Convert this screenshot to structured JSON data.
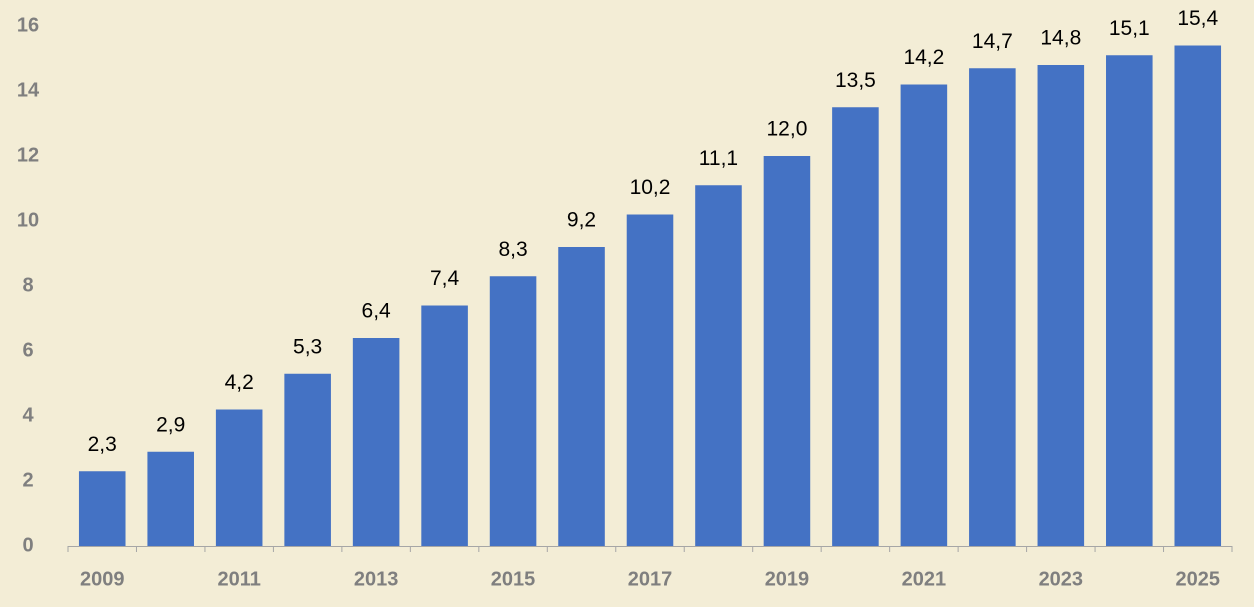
{
  "chart_data": {
    "type": "bar",
    "categories": [
      "2009",
      null,
      "2011",
      null,
      "2013",
      null,
      "2015",
      null,
      "2017",
      null,
      "2019",
      null,
      "2021",
      null,
      "2023",
      null,
      "2025"
    ],
    "values": [
      2.3,
      2.9,
      4.2,
      5.3,
      6.4,
      7.4,
      8.3,
      9.2,
      10.2,
      11.1,
      12.0,
      13.5,
      14.2,
      14.7,
      14.8,
      15.1,
      15.4
    ],
    "value_labels": [
      "2,3",
      "2,9",
      "4,2",
      "5,3",
      "6,4",
      "7,4",
      "8,3",
      "9,2",
      "10,2",
      "11,1",
      "12,0",
      "13,5",
      "14,2",
      "14,7",
      "14,8",
      "15,1",
      "15,4"
    ],
    "color": "#4472c4",
    "ylim": [
      0,
      16
    ],
    "yticks": [
      0,
      2,
      4,
      6,
      8,
      10,
      12,
      14,
      16
    ],
    "grid": false
  }
}
